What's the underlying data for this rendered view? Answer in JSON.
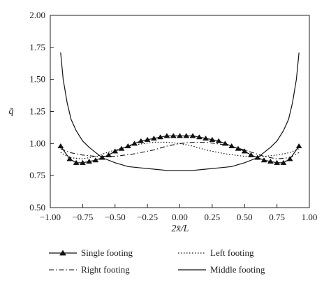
{
  "chart_data": {
    "type": "line",
    "xlabel": "2x̄/L",
    "ylabel": "q̄",
    "xlim": [
      -1.0,
      1.0
    ],
    "ylim": [
      0.5,
      2.0
    ],
    "xticks": [
      "−1.00",
      "−0.75",
      "−0.50",
      "−0.25",
      "0.00",
      "0.25",
      "0.50",
      "0.75",
      "1.00"
    ],
    "yticks": [
      "0.50",
      "0.75",
      "1.00",
      "1.25",
      "1.50",
      "1.75",
      "2.00"
    ],
    "grid": false,
    "legend_position": "bottom",
    "series": [
      {
        "name": "Single footing",
        "style": "solid-triangle",
        "x": [
          -0.92,
          -0.85,
          -0.8,
          -0.75,
          -0.7,
          -0.65,
          -0.6,
          -0.55,
          -0.5,
          -0.45,
          -0.4,
          -0.35,
          -0.3,
          -0.25,
          -0.2,
          -0.15,
          -0.1,
          -0.05,
          0.0,
          0.05,
          0.1,
          0.15,
          0.2,
          0.25,
          0.3,
          0.35,
          0.4,
          0.45,
          0.5,
          0.55,
          0.6,
          0.65,
          0.7,
          0.75,
          0.8,
          0.85,
          0.92
        ],
        "y": [
          0.98,
          0.88,
          0.85,
          0.85,
          0.86,
          0.87,
          0.89,
          0.91,
          0.94,
          0.96,
          0.98,
          1.0,
          1.02,
          1.03,
          1.04,
          1.05,
          1.06,
          1.06,
          1.06,
          1.06,
          1.06,
          1.05,
          1.04,
          1.03,
          1.02,
          1.0,
          0.98,
          0.96,
          0.94,
          0.91,
          0.89,
          0.87,
          0.86,
          0.85,
          0.85,
          0.88,
          0.98
        ]
      },
      {
        "name": "Left footing",
        "style": "dotted",
        "x": [
          -0.92,
          -0.85,
          -0.75,
          -0.65,
          -0.5,
          -0.35,
          -0.2,
          -0.1,
          0.0,
          0.1,
          0.2,
          0.35,
          0.5,
          0.65,
          0.75,
          0.85,
          0.92
        ],
        "y": [
          0.93,
          0.89,
          0.88,
          0.9,
          0.95,
          0.99,
          1.01,
          1.01,
          1.0,
          0.98,
          0.95,
          0.92,
          0.9,
          0.9,
          0.91,
          0.93,
          0.96
        ]
      },
      {
        "name": "Right footing",
        "style": "dash-dot",
        "x": [
          -0.92,
          -0.85,
          -0.75,
          -0.65,
          -0.5,
          -0.35,
          -0.2,
          -0.1,
          0.0,
          0.1,
          0.2,
          0.35,
          0.5,
          0.65,
          0.75,
          0.85,
          0.92
        ],
        "y": [
          0.96,
          0.93,
          0.91,
          0.9,
          0.9,
          0.92,
          0.95,
          0.98,
          1.0,
          1.01,
          1.01,
          0.99,
          0.95,
          0.9,
          0.88,
          0.89,
          0.93
        ]
      },
      {
        "name": "Middle footing",
        "style": "solid",
        "x": [
          -0.92,
          -0.9,
          -0.87,
          -0.84,
          -0.8,
          -0.75,
          -0.7,
          -0.65,
          -0.6,
          -0.5,
          -0.4,
          -0.3,
          -0.2,
          -0.1,
          0.0,
          0.1,
          0.2,
          0.3,
          0.4,
          0.5,
          0.6,
          0.65,
          0.7,
          0.75,
          0.8,
          0.84,
          0.87,
          0.9,
          0.92
        ],
        "y": [
          1.71,
          1.5,
          1.32,
          1.19,
          1.1,
          1.02,
          0.97,
          0.93,
          0.89,
          0.85,
          0.82,
          0.81,
          0.8,
          0.79,
          0.79,
          0.79,
          0.8,
          0.81,
          0.82,
          0.85,
          0.89,
          0.93,
          0.97,
          1.02,
          1.1,
          1.19,
          1.32,
          1.5,
          1.71
        ]
      }
    ]
  }
}
